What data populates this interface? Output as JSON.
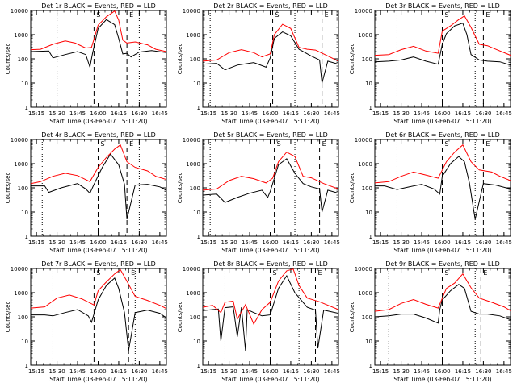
{
  "shared": {
    "xlabel": "Start Time (03-Feb-07 15:11:20)",
    "ylabel": "Counts/sec",
    "x_tick_labels": [
      "15:15",
      "15:30",
      "15:45",
      "16:00",
      "16:15",
      "16:30",
      "16:45"
    ],
    "y_tick_labels": [
      "1",
      "10",
      "100",
      "1000",
      "10000"
    ],
    "marker_s": "S",
    "marker_e": "E",
    "colors": {
      "events": "#000000",
      "lld": "#ff0000",
      "axis": "#000000"
    }
  },
  "chart_data": [
    {
      "type": "line",
      "title": "Det 1r BLACK = Events, RED = LLD",
      "xlim": [
        15.18,
        16.83
      ],
      "ylim": [
        1,
        10000
      ],
      "yscale": "log",
      "dotted_x": [
        15.5,
        16.5
      ],
      "dashed_x": [
        15.95,
        16.35
      ],
      "series": [
        {
          "name": "Events",
          "x": [
            15.18,
            15.4,
            15.45,
            15.6,
            15.75,
            15.85,
            15.9,
            15.93,
            16.0,
            16.1,
            16.2,
            16.25,
            16.3,
            16.35,
            16.4,
            16.5,
            16.65,
            16.83
          ],
          "values": [
            200,
            210,
            110,
            150,
            200,
            150,
            45,
            160,
            1800,
            4200,
            2600,
            700,
            160,
            170,
            120,
            190,
            220,
            180
          ]
        },
        {
          "name": "LLD",
          "x": [
            15.18,
            15.3,
            15.45,
            15.6,
            15.72,
            15.85,
            15.92,
            16.0,
            16.1,
            16.2,
            16.25,
            16.3,
            16.35,
            16.45,
            16.6,
            16.7,
            16.83
          ],
          "values": [
            240,
            250,
            400,
            550,
            450,
            280,
            300,
            2500,
            5500,
            9500,
            4000,
            600,
            450,
            500,
            380,
            250,
            200
          ]
        }
      ]
    },
    {
      "type": "line",
      "title": "Det 2r BLACK = Events, RED = LLD",
      "xlim": [
        15.18,
        16.83
      ],
      "ylim": [
        1,
        10000
      ],
      "yscale": "log",
      "dotted_x": [
        15.27,
        16.3
      ],
      "dashed_x": [
        16.03,
        16.63
      ],
      "series": [
        {
          "name": "Events",
          "x": [
            15.18,
            15.35,
            15.45,
            15.6,
            15.8,
            15.95,
            16.0,
            16.05,
            16.15,
            16.25,
            16.35,
            16.5,
            16.6,
            16.63,
            16.7,
            16.83
          ],
          "values": [
            60,
            65,
            35,
            55,
            70,
            45,
            110,
            700,
            1300,
            900,
            250,
            130,
            90,
            10,
            80,
            60
          ]
        },
        {
          "name": "LLD",
          "x": [
            15.18,
            15.35,
            15.5,
            15.65,
            15.8,
            15.9,
            16.0,
            16.05,
            16.15,
            16.25,
            16.35,
            16.45,
            16.55,
            16.65,
            16.83
          ],
          "values": [
            80,
            90,
            180,
            240,
            180,
            120,
            160,
            1000,
            2700,
            1800,
            300,
            250,
            230,
            160,
            80
          ]
        }
      ]
    },
    {
      "type": "line",
      "title": "Det 3r BLACK = Events, RED = LLD",
      "xlim": [
        15.18,
        16.83
      ],
      "ylim": [
        1,
        10000
      ],
      "yscale": "log",
      "dotted_x": [
        15.45,
        16.4
      ],
      "dashed_x": [
        16.0,
        16.5
      ],
      "series": [
        {
          "name": "Events",
          "x": [
            15.18,
            15.35,
            15.5,
            15.65,
            15.8,
            15.95,
            16.0,
            16.05,
            16.15,
            16.25,
            16.3,
            16.35,
            16.45,
            16.55,
            16.7,
            16.83
          ],
          "values": [
            75,
            80,
            90,
            120,
            80,
            60,
            400,
            1100,
            2300,
            3000,
            1000,
            150,
            90,
            80,
            75,
            55
          ]
        },
        {
          "name": "LLD",
          "x": [
            15.18,
            15.35,
            15.5,
            15.65,
            15.8,
            15.95,
            16.0,
            16.1,
            16.2,
            16.27,
            16.35,
            16.45,
            16.55,
            16.65,
            16.83
          ],
          "values": [
            140,
            150,
            240,
            330,
            210,
            170,
            1400,
            2300,
            4200,
            6000,
            2000,
            400,
            350,
            250,
            140
          ]
        }
      ]
    },
    {
      "type": "line",
      "title": "Det 4r BLACK = Events, RED = LLD",
      "xlim": [
        15.18,
        16.83
      ],
      "ylim": [
        1,
        10000
      ],
      "yscale": "log",
      "dotted_x": [
        15.32,
        16.5
      ],
      "dashed_x": [
        16.0,
        16.35
      ],
      "series": [
        {
          "name": "Events",
          "x": [
            15.18,
            15.35,
            15.4,
            15.55,
            15.75,
            15.85,
            15.9,
            15.95,
            16.05,
            16.15,
            16.25,
            16.32,
            16.35,
            16.45,
            16.6,
            16.75,
            16.83
          ],
          "values": [
            120,
            120,
            65,
            100,
            150,
            90,
            60,
            140,
            700,
            2500,
            900,
            140,
            5,
            130,
            140,
            110,
            80
          ]
        },
        {
          "name": "LLD",
          "x": [
            15.18,
            15.3,
            15.45,
            15.6,
            15.75,
            15.9,
            16.0,
            16.1,
            16.2,
            16.27,
            16.35,
            16.45,
            16.6,
            16.7,
            16.83
          ],
          "values": [
            150,
            180,
            300,
            400,
            320,
            180,
            700,
            1800,
            4000,
            6000,
            1200,
            700,
            500,
            300,
            220
          ]
        }
      ]
    },
    {
      "type": "line",
      "title": "Det 5r BLACK = Events, RED = LLD",
      "xlim": [
        15.18,
        16.83
      ],
      "ylim": [
        1,
        10000
      ],
      "yscale": "log",
      "dotted_x": [
        15.27,
        16.3
      ],
      "dashed_x": [
        16.05,
        16.6
      ],
      "series": [
        {
          "name": "Events",
          "x": [
            15.18,
            15.35,
            15.45,
            15.6,
            15.75,
            15.9,
            15.97,
            16.0,
            16.1,
            16.2,
            16.3,
            16.4,
            16.5,
            16.6,
            16.63,
            16.7,
            16.83
          ],
          "values": [
            50,
            55,
            25,
            40,
            60,
            80,
            40,
            70,
            900,
            1600,
            400,
            150,
            110,
            90,
            10,
            80,
            60
          ]
        },
        {
          "name": "LLD",
          "x": [
            15.18,
            15.35,
            15.5,
            15.65,
            15.8,
            15.95,
            16.03,
            16.1,
            16.2,
            16.3,
            16.4,
            16.5,
            16.65,
            16.83
          ],
          "values": [
            80,
            90,
            200,
            300,
            240,
            160,
            250,
            1200,
            3000,
            2000,
            300,
            260,
            150,
            90
          ]
        }
      ]
    },
    {
      "type": "line",
      "title": "Det 6r BLACK = Events, RED = LLD",
      "xlim": [
        15.18,
        16.83
      ],
      "ylim": [
        1,
        10000
      ],
      "yscale": "log",
      "dotted_x": [
        15.45,
        16.4
      ],
      "dashed_x": [
        16.0,
        16.5
      ],
      "series": [
        {
          "name": "Events",
          "x": [
            15.18,
            15.3,
            15.45,
            15.6,
            15.75,
            15.9,
            15.97,
            16.0,
            16.1,
            16.2,
            16.27,
            16.33,
            16.4,
            16.5,
            16.65,
            16.83
          ],
          "values": [
            120,
            120,
            85,
            110,
            140,
            90,
            55,
            300,
            1000,
            2000,
            1200,
            160,
            5,
            150,
            130,
            90
          ]
        },
        {
          "name": "LLD",
          "x": [
            15.18,
            15.35,
            15.5,
            15.65,
            15.8,
            15.95,
            16.05,
            16.15,
            16.25,
            16.35,
            16.45,
            16.6,
            16.7,
            16.83
          ],
          "values": [
            160,
            180,
            300,
            450,
            340,
            250,
            1200,
            3000,
            6000,
            1200,
            550,
            450,
            300,
            200
          ]
        }
      ]
    },
    {
      "type": "line",
      "title": "Det 7r BLACK = Events, RED = LLD",
      "xlim": [
        15.18,
        16.83
      ],
      "ylim": [
        1,
        10000
      ],
      "yscale": "log",
      "dotted_x": [
        15.45,
        16.45
      ],
      "dashed_x": [
        15.95,
        16.37
      ],
      "series": [
        {
          "name": "Events",
          "x": [
            15.18,
            15.35,
            15.45,
            15.6,
            15.75,
            15.88,
            15.92,
            16.0,
            16.1,
            16.2,
            16.25,
            16.32,
            16.37,
            16.45,
            16.6,
            16.75,
            16.83
          ],
          "values": [
            120,
            120,
            110,
            150,
            200,
            110,
            60,
            500,
            2000,
            4000,
            1500,
            150,
            4,
            150,
            190,
            140,
            90
          ]
        },
        {
          "name": "LLD",
          "x": [
            15.18,
            15.35,
            15.5,
            15.65,
            15.8,
            15.95,
            16.0,
            16.1,
            16.2,
            16.27,
            16.35,
            16.45,
            16.6,
            16.75,
            16.83
          ],
          "values": [
            230,
            260,
            600,
            800,
            560,
            310,
            1200,
            2800,
            6000,
            9000,
            3000,
            700,
            480,
            300,
            220
          ]
        }
      ]
    },
    {
      "type": "line",
      "title": "Det 8r BLACK = Events, RED = LLD",
      "xlim": [
        15.18,
        16.83
      ],
      "ylim": [
        1,
        10000
      ],
      "yscale": "log",
      "dotted_x": [
        15.45,
        16.35
      ],
      "dashed_x": [
        16.0,
        16.55
      ],
      "series": [
        {
          "name": "Events",
          "x": [
            15.18,
            15.3,
            15.37,
            15.4,
            15.45,
            15.55,
            15.6,
            15.65,
            15.7,
            15.72,
            15.8,
            15.9,
            16.0,
            16.1,
            16.2,
            16.3,
            16.45,
            16.55,
            16.58,
            16.65,
            16.83
          ],
          "values": [
            180,
            200,
            210,
            10,
            240,
            260,
            15,
            250,
            4,
            200,
            150,
            110,
            120,
            1500,
            5000,
            1000,
            250,
            190,
            5,
            190,
            140
          ]
        },
        {
          "name": "LLD",
          "x": [
            15.18,
            15.3,
            15.4,
            15.45,
            15.55,
            15.6,
            15.7,
            15.8,
            15.9,
            16.0,
            16.1,
            16.2,
            16.28,
            16.35,
            16.45,
            16.6,
            16.83
          ],
          "values": [
            250,
            300,
            150,
            400,
            450,
            80,
            320,
            50,
            200,
            400,
            3000,
            8000,
            9500,
            2000,
            600,
            420,
            200
          ]
        }
      ]
    },
    {
      "type": "line",
      "title": "Det 9r BLACK = Events, RED = LLD",
      "xlim": [
        15.18,
        16.83
      ],
      "ylim": [
        1,
        10000
      ],
      "yscale": "log",
      "dotted_x": [
        15.35,
        16.4
      ],
      "dashed_x": [
        16.0,
        16.47
      ],
      "series": [
        {
          "name": "Events",
          "x": [
            15.18,
            15.35,
            15.5,
            15.65,
            15.8,
            15.95,
            15.97,
            16.0,
            16.1,
            16.2,
            16.27,
            16.35,
            16.45,
            16.55,
            16.7,
            16.83
          ],
          "values": [
            100,
            110,
            130,
            130,
            90,
            55,
            200,
            500,
            1200,
            2200,
            1500,
            170,
            130,
            130,
            110,
            75
          ]
        },
        {
          "name": "LLD",
          "x": [
            15.18,
            15.35,
            15.5,
            15.65,
            15.8,
            15.95,
            16.05,
            16.15,
            16.25,
            16.35,
            16.45,
            16.6,
            16.75,
            16.83
          ],
          "values": [
            170,
            200,
            360,
            520,
            330,
            230,
            1500,
            2500,
            6000,
            1600,
            600,
            400,
            260,
            180
          ]
        }
      ]
    }
  ]
}
